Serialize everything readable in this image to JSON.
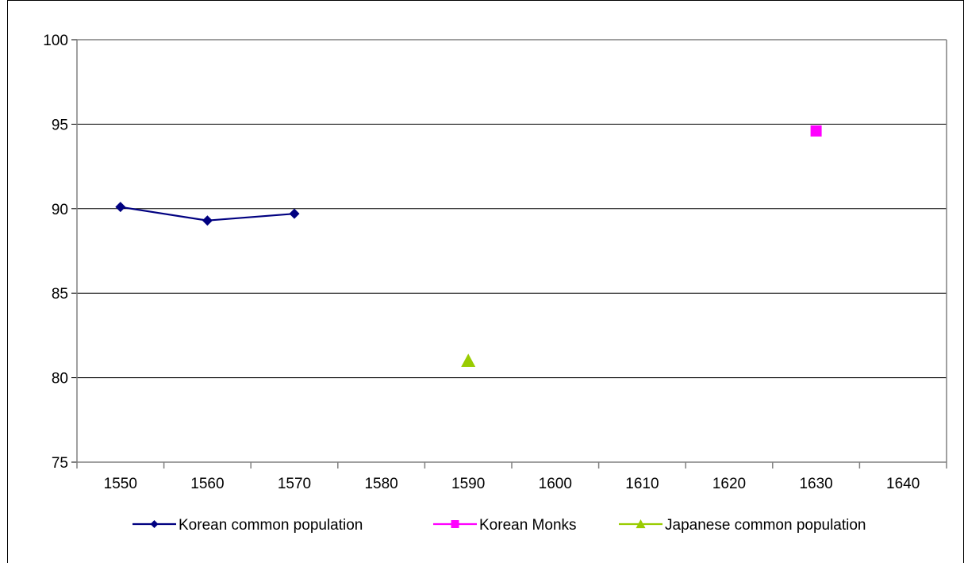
{
  "chart_data": {
    "type": "line",
    "title": "",
    "xlabel": "",
    "ylabel": "",
    "categories": [
      "1550",
      "1560",
      "1570",
      "1580",
      "1590",
      "1600",
      "1610",
      "1620",
      "1630",
      "1640"
    ],
    "ylim": [
      75,
      100
    ],
    "yticks": [
      "75",
      "80",
      "85",
      "90",
      "95",
      "100"
    ],
    "grid": "horizontal major gridlines",
    "legend_position": "bottom",
    "series": [
      {
        "name": "Korean common population",
        "color": "#000080",
        "marker": "diamond",
        "values": [
          90.1,
          89.3,
          89.7,
          null,
          null,
          null,
          null,
          null,
          null,
          null
        ]
      },
      {
        "name": "Korean Monks",
        "color": "#FF00FF",
        "marker": "square",
        "values": [
          null,
          null,
          null,
          null,
          null,
          null,
          null,
          null,
          94.6,
          null
        ]
      },
      {
        "name": "Japanese common population",
        "color": "#99CC00",
        "marker": "triangle",
        "values": [
          null,
          null,
          null,
          null,
          81.0,
          null,
          null,
          null,
          null,
          null
        ]
      }
    ]
  }
}
